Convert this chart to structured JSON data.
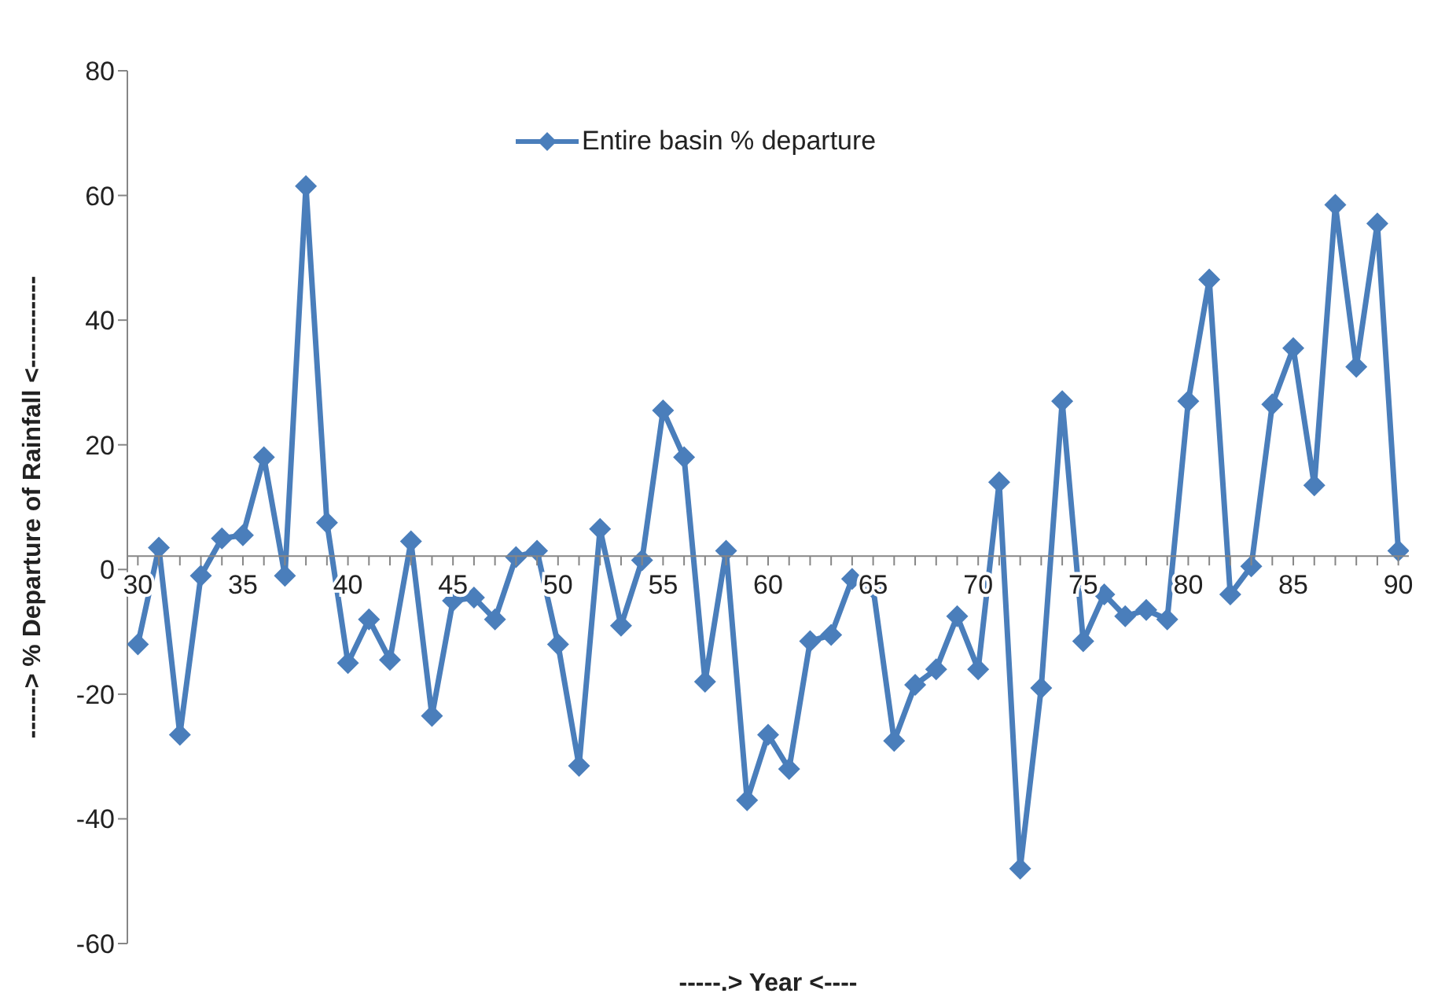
{
  "chart_data": {
    "type": "line",
    "xlabel": "-----.> Year  <----",
    "ylabel": "------> % Departure of  Rainfall <-----------",
    "x": [
      30,
      31,
      32,
      33,
      34,
      35,
      36,
      37,
      38,
      39,
      40,
      41,
      42,
      43,
      44,
      45,
      46,
      47,
      48,
      49,
      50,
      51,
      52,
      53,
      54,
      55,
      56,
      57,
      58,
      59,
      60,
      61,
      62,
      63,
      64,
      65,
      66,
      67,
      68,
      69,
      70,
      71,
      72,
      73,
      74,
      75,
      76,
      77,
      78,
      79,
      80,
      81,
      82,
      83,
      84,
      85,
      86,
      87,
      88,
      89,
      90
    ],
    "series": [
      {
        "name": "Entire basin % departure",
        "color": "#4a7ebb",
        "values": [
          -12,
          3.5,
          -26.5,
          -1,
          5,
          5.5,
          18,
          -1,
          61.5,
          7.5,
          -15,
          -8,
          -14.5,
          4.5,
          -23.5,
          -5,
          -4.5,
          -8,
          2,
          3,
          -12,
          -31.5,
          6.5,
          -9,
          1.5,
          25.5,
          18,
          -18,
          3,
          -37,
          -26.5,
          -32,
          -11.5,
          -10.5,
          -1.5,
          -3,
          -27.5,
          -18.5,
          -16,
          -7.5,
          -16,
          14,
          -48,
          -19,
          27,
          -11.5,
          -4,
          -7.5,
          -6.5,
          -8,
          27,
          46.5,
          -4,
          0.5,
          26.5,
          35.5,
          13.5,
          58.5,
          32.5,
          55.5,
          3
        ]
      }
    ],
    "xlim": [
      29.5,
      90.5
    ],
    "xticks": [
      30,
      {
        "value": 31,
        "label": null
      },
      {
        "value": 32,
        "label": null
      },
      {
        "value": 33,
        "label": null
      },
      {
        "value": 34,
        "label": null
      },
      35,
      {
        "value": 36,
        "label": null
      },
      {
        "value": 37,
        "label": null
      },
      {
        "value": 38,
        "label": null
      },
      {
        "value": 39,
        "label": null
      },
      40,
      {
        "value": 41,
        "label": null
      },
      {
        "value": 42,
        "label": null
      },
      {
        "value": 43,
        "label": null
      },
      {
        "value": 44,
        "label": null
      },
      45,
      {
        "value": 46,
        "label": null
      },
      {
        "value": 47,
        "label": null
      },
      {
        "value": 48,
        "label": null
      },
      {
        "value": 49,
        "label": null
      },
      50,
      {
        "value": 51,
        "label": null
      },
      {
        "value": 52,
        "label": null
      },
      {
        "value": 53,
        "label": null
      },
      {
        "value": 54,
        "label": null
      },
      55,
      {
        "value": 56,
        "label": null
      },
      {
        "value": 57,
        "label": null
      },
      {
        "value": 58,
        "label": null
      },
      {
        "value": 59,
        "label": null
      },
      60,
      {
        "value": 61,
        "label": null
      },
      {
        "value": 62,
        "label": null
      },
      {
        "value": 63,
        "label": null
      },
      {
        "value": 64,
        "label": null
      },
      65,
      {
        "value": 66,
        "label": null
      },
      {
        "value": 67,
        "label": null
      },
      {
        "value": 68,
        "label": null
      },
      {
        "value": 69,
        "label": null
      },
      70,
      {
        "value": 71,
        "label": null
      },
      {
        "value": 72,
        "label": null
      },
      {
        "value": 73,
        "label": null
      },
      {
        "value": 74,
        "label": null
      },
      75,
      {
        "value": 76,
        "label": null
      },
      {
        "value": 77,
        "label": null
      },
      {
        "value": 78,
        "label": null
      },
      {
        "value": 79,
        "label": null
      },
      80,
      {
        "value": 81,
        "label": null
      },
      {
        "value": 82,
        "label": null
      },
      {
        "value": 83,
        "label": null
      },
      {
        "value": 84,
        "label": null
      },
      85,
      {
        "value": 86,
        "label": null
      },
      {
        "value": 87,
        "label": null
      },
      {
        "value": 88,
        "label": null
      },
      {
        "value": 89,
        "label": null
      },
      90
    ],
    "ylim": [
      -60,
      80
    ],
    "yticks": [
      -60,
      -40,
      -20,
      0,
      20,
      40,
      60,
      80
    ],
    "grid": false,
    "legend": "top",
    "marker": "diamond",
    "line_style": "solid"
  }
}
